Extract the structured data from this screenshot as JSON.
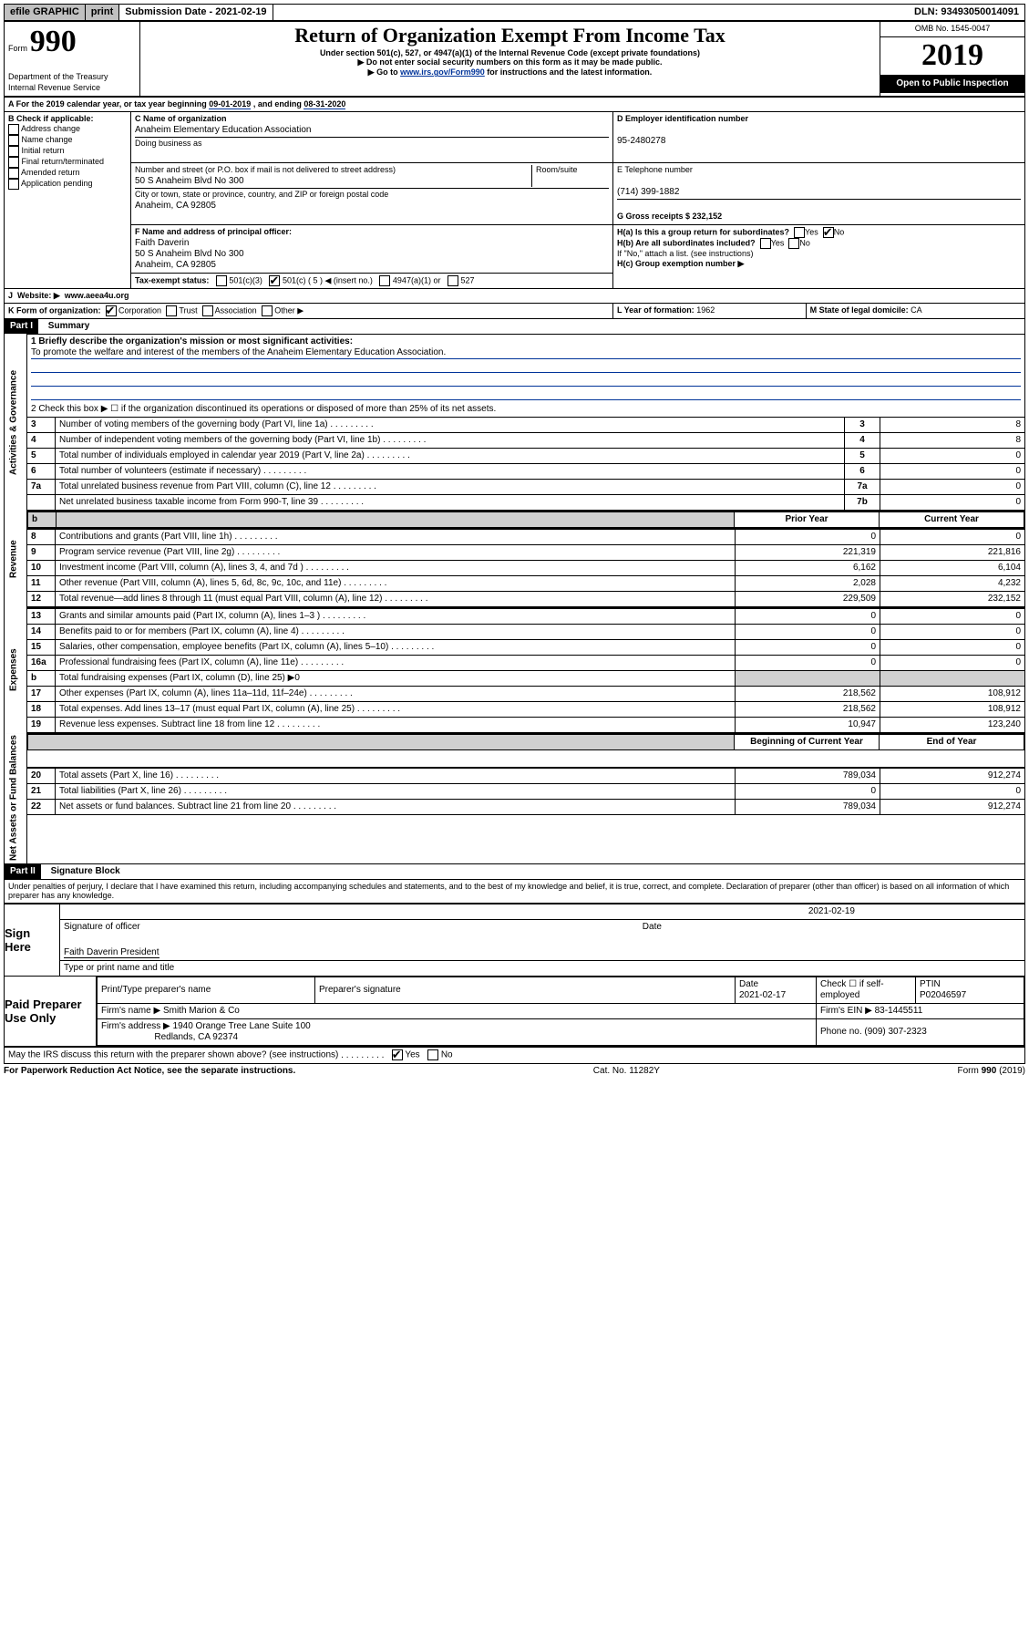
{
  "topbar": {
    "efile": "efile GRAPHIC",
    "print": "print",
    "subdate_label": "Submission Date - ",
    "subdate": "2021-02-19",
    "dln_label": "DLN: ",
    "dln": "93493050014091"
  },
  "header": {
    "form_label": "Form",
    "form_no": "990",
    "dept": "Department of the Treasury\nInternal Revenue Service",
    "title": "Return of Organization Exempt From Income Tax",
    "subtitle": "Under section 501(c), 527, or 4947(a)(1) of the Internal Revenue Code (except private foundations)",
    "line1": "▶ Do not enter social security numbers on this form as it may be made public.",
    "line2a": "▶ Go to ",
    "line2_link": "www.irs.gov/Form990",
    "line2b": " for instructions and the latest information.",
    "omb": "OMB No. 1545-0047",
    "year": "2019",
    "open": "Open to Public Inspection"
  },
  "sectionA": {
    "cal_year": "For the 2019 calendar year, or tax year beginning ",
    "beg": "09-01-2019",
    "mid": " , and ending ",
    "end": "08-31-2020",
    "B_label": "B Check if applicable:",
    "B_items": [
      "Address change",
      "Name change",
      "Initial return",
      "Final return/terminated",
      "Amended return",
      "Application pending"
    ],
    "C_name_label": "C Name of organization",
    "C_name": "Anaheim Elementary Education Association",
    "dba_label": "Doing business as",
    "addr_label": "Number and street (or P.O. box if mail is not delivered to street address)",
    "room_label": "Room/suite",
    "addr": "50 S Anaheim Blvd No 300",
    "city_label": "City or town, state or province, country, and ZIP or foreign postal code",
    "city": "Anaheim, CA  92805",
    "D_label": "D Employer identification number",
    "D_val": "95-2480278",
    "E_label": "E Telephone number",
    "E_val": "(714) 399-1882",
    "G_label": "G Gross receipts $ ",
    "G_val": "232,152",
    "F_label": "F  Name and address of principal officer:",
    "F_name": "Faith Daverin",
    "F_addr1": "50 S Anaheim Blvd No 300",
    "F_addr2": "Anaheim, CA  92805",
    "Ha_label": "H(a)  Is this a group return for subordinates?",
    "Hb_label": "H(b)  Are all subordinates included?",
    "Hb_note": "If \"No,\" attach a list. (see instructions)",
    "Hc_label": "H(c)  Group exemption number ▶",
    "yes": "Yes",
    "no": "No",
    "I_label": "Tax-exempt status:",
    "I_501c3": "501(c)(3)",
    "I_501c": "501(c) ( 5 ) ◀ (insert no.)",
    "I_4947": "4947(a)(1) or",
    "I_527": "527",
    "J_label": "Website: ▶",
    "J_val": "www.aeea4u.org",
    "K_label": "K Form of organization:",
    "K_corp": "Corporation",
    "K_trust": "Trust",
    "K_assoc": "Association",
    "K_other": "Other ▶",
    "L_label": "L Year of formation: ",
    "L_val": "1962",
    "M_label": "M State of legal domicile: ",
    "M_val": "CA"
  },
  "part1": {
    "hdr": "Part I",
    "title": "Summary",
    "side_gov": "Activities & Governance",
    "side_rev": "Revenue",
    "side_exp": "Expenses",
    "side_net": "Net Assets or Fund Balances",
    "q1_label": "1  Briefly describe the organization's mission or most significant activities:",
    "q1_val": "To promote the welfare and interest of the members of the Anaheim Elementary Education Association.",
    "q2": "2   Check this box ▶ ☐  if the organization discontinued its operations or disposed of more than 25% of its net assets.",
    "rows_gov": [
      {
        "n": "3",
        "t": "Number of voting members of the governing body (Part VI, line 1a)",
        "rn": "3",
        "v": "8"
      },
      {
        "n": "4",
        "t": "Number of independent voting members of the governing body (Part VI, line 1b)",
        "rn": "4",
        "v": "8"
      },
      {
        "n": "5",
        "t": "Total number of individuals employed in calendar year 2019 (Part V, line 2a)",
        "rn": "5",
        "v": "0"
      },
      {
        "n": "6",
        "t": "Total number of volunteers (estimate if necessary)",
        "rn": "6",
        "v": "0"
      },
      {
        "n": "7a",
        "t": "Total unrelated business revenue from Part VIII, column (C), line 12",
        "rn": "7a",
        "v": "0"
      },
      {
        "n": "",
        "t": "Net unrelated business taxable income from Form 990-T, line 39",
        "rn": "7b",
        "v": "0"
      }
    ],
    "col_b": "b",
    "col_prior": "Prior Year",
    "col_curr": "Current Year",
    "rows_rev": [
      {
        "n": "8",
        "t": "Contributions and grants (Part VIII, line 1h)",
        "p": "0",
        "c": "0"
      },
      {
        "n": "9",
        "t": "Program service revenue (Part VIII, line 2g)",
        "p": "221,319",
        "c": "221,816"
      },
      {
        "n": "10",
        "t": "Investment income (Part VIII, column (A), lines 3, 4, and 7d )",
        "p": "6,162",
        "c": "6,104"
      },
      {
        "n": "11",
        "t": "Other revenue (Part VIII, column (A), lines 5, 6d, 8c, 9c, 10c, and 11e)",
        "p": "2,028",
        "c": "4,232"
      },
      {
        "n": "12",
        "t": "Total revenue—add lines 8 through 11 (must equal Part VIII, column (A), line 12)",
        "p": "229,509",
        "c": "232,152"
      }
    ],
    "rows_exp": [
      {
        "n": "13",
        "t": "Grants and similar amounts paid (Part IX, column (A), lines 1–3 )",
        "p": "0",
        "c": "0"
      },
      {
        "n": "14",
        "t": "Benefits paid to or for members (Part IX, column (A), line 4)",
        "p": "0",
        "c": "0"
      },
      {
        "n": "15",
        "t": "Salaries, other compensation, employee benefits (Part IX, column (A), lines 5–10)",
        "p": "0",
        "c": "0"
      },
      {
        "n": "16a",
        "t": "Professional fundraising fees (Part IX, column (A), line 11e)",
        "p": "0",
        "c": "0"
      },
      {
        "n": "b",
        "t": "Total fundraising expenses (Part IX, column (D), line 25) ▶0",
        "p": "",
        "c": "",
        "shade": true
      },
      {
        "n": "17",
        "t": "Other expenses (Part IX, column (A), lines 11a–11d, 11f–24e)",
        "p": "218,562",
        "c": "108,912"
      },
      {
        "n": "18",
        "t": "Total expenses. Add lines 13–17 (must equal Part IX, column (A), line 25)",
        "p": "218,562",
        "c": "108,912"
      },
      {
        "n": "19",
        "t": "Revenue less expenses. Subtract line 18 from line 12",
        "p": "10,947",
        "c": "123,240"
      }
    ],
    "col_beg": "Beginning of Current Year",
    "col_end": "End of Year",
    "rows_net": [
      {
        "n": "20",
        "t": "Total assets (Part X, line 16)",
        "p": "789,034",
        "c": "912,274"
      },
      {
        "n": "21",
        "t": "Total liabilities (Part X, line 26)",
        "p": "0",
        "c": "0"
      },
      {
        "n": "22",
        "t": "Net assets or fund balances. Subtract line 21 from line 20",
        "p": "789,034",
        "c": "912,274"
      }
    ]
  },
  "part2": {
    "hdr": "Part II",
    "title": "Signature Block",
    "decl": "Under penalties of perjury, I declare that I have examined this return, including accompanying schedules and statements, and to the best of my knowledge and belief, it is true, correct, and complete. Declaration of preparer (other than officer) is based on all information of which preparer has any knowledge.",
    "sign_here": "Sign Here",
    "sig_officer": "Signature of officer",
    "sig_date": "2021-02-19",
    "date_lbl": "Date",
    "officer_name": "Faith Daverin President",
    "type_name": "Type or print name and title",
    "paid": "Paid Preparer Use Only",
    "prep_name_lbl": "Print/Type preparer's name",
    "prep_sig_lbl": "Preparer's signature",
    "prep_date_lbl": "Date",
    "prep_date": "2021-02-17",
    "check_lbl": "Check ☐ if self-employed",
    "ptin_lbl": "PTIN",
    "ptin": "P02046597",
    "firm_name_lbl": "Firm's name    ▶ ",
    "firm_name": "Smith Marion & Co",
    "firm_ein_lbl": "Firm's EIN ▶ ",
    "firm_ein": "83-1445511",
    "firm_addr_lbl": "Firm's address ▶ ",
    "firm_addr1": "1940 Orange Tree Lane Suite 100",
    "firm_addr2": "Redlands, CA  92374",
    "phone_lbl": "Phone no. ",
    "phone": "(909) 307-2323",
    "discuss": "May the IRS discuss this return with the preparer shown above? (see instructions)"
  },
  "footer": {
    "pra": "For Paperwork Reduction Act Notice, see the separate instructions.",
    "cat": "Cat. No. 11282Y",
    "form": "Form 990 (2019)"
  }
}
